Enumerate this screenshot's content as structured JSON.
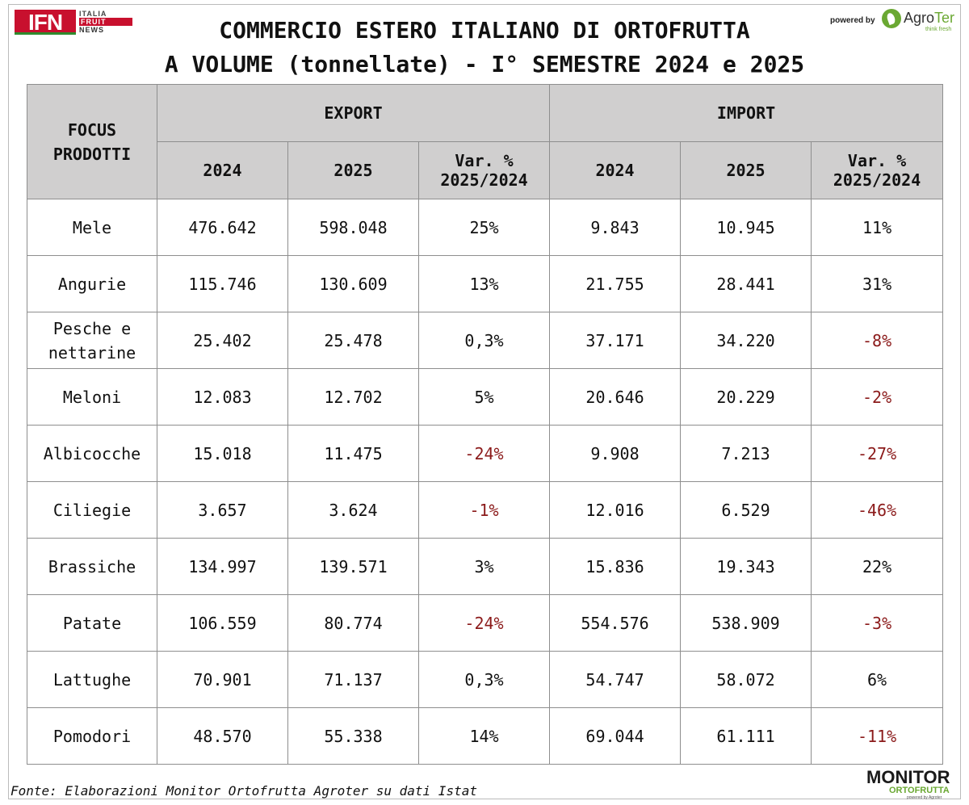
{
  "brand": {
    "ifn": {
      "main": "IFN",
      "line1": "ITALIA",
      "line2": "FRUIT",
      "line3": "NEWS"
    },
    "powered_by": "powered by",
    "agroter": {
      "name_a": "Agro",
      "name_b": "Ter",
      "tagline": "think fresh"
    },
    "monitor": {
      "line1": "MONITOR",
      "line2": "ORTOFRUTTA",
      "line3": "powered by Agroter"
    }
  },
  "title": {
    "line1": "COMMERCIO ESTERO ITALIANO DI ORTOFRUTTA",
    "line2": "A VOLUME (tonnellate) - I° SEMESTRE 2024 e 2025"
  },
  "table": {
    "header": {
      "focus_line1": "FOCUS",
      "focus_line2": "PRODOTTI",
      "export": "EXPORT",
      "import": "IMPORT",
      "y2024": "2024",
      "y2025": "2025",
      "var_line1": "Var. %",
      "var_line2": "2025/2024"
    },
    "rows": [
      {
        "product_l1": "Mele",
        "product_l2": "",
        "exp_2024": "476.642",
        "exp_2025": "598.048",
        "exp_var": "25%",
        "imp_2024": "9.843",
        "imp_2025": "10.945",
        "imp_var": "11%"
      },
      {
        "product_l1": "Angurie",
        "product_l2": "",
        "exp_2024": "115.746",
        "exp_2025": "130.609",
        "exp_var": "13%",
        "imp_2024": "21.755",
        "imp_2025": "28.441",
        "imp_var": "31%"
      },
      {
        "product_l1": "Pesche e",
        "product_l2": "nettarine",
        "exp_2024": "25.402",
        "exp_2025": "25.478",
        "exp_var": "0,3%",
        "imp_2024": "37.171",
        "imp_2025": "34.220",
        "imp_var": "-8%"
      },
      {
        "product_l1": "Meloni",
        "product_l2": "",
        "exp_2024": "12.083",
        "exp_2025": "12.702",
        "exp_var": "5%",
        "imp_2024": "20.646",
        "imp_2025": "20.229",
        "imp_var": "-2%"
      },
      {
        "product_l1": "Albicocche",
        "product_l2": "",
        "exp_2024": "15.018",
        "exp_2025": "11.475",
        "exp_var": "-24%",
        "imp_2024": "9.908",
        "imp_2025": "7.213",
        "imp_var": "-27%"
      },
      {
        "product_l1": "Ciliegie",
        "product_l2": "",
        "exp_2024": "3.657",
        "exp_2025": "3.624",
        "exp_var": "-1%",
        "imp_2024": "12.016",
        "imp_2025": "6.529",
        "imp_var": "-46%"
      },
      {
        "product_l1": "Brassiche",
        "product_l2": "",
        "exp_2024": "134.997",
        "exp_2025": "139.571",
        "exp_var": "3%",
        "imp_2024": "15.836",
        "imp_2025": "19.343",
        "imp_var": "22%"
      },
      {
        "product_l1": "Patate",
        "product_l2": "",
        "exp_2024": "106.559",
        "exp_2025": "80.774",
        "exp_var": "-24%",
        "imp_2024": "554.576",
        "imp_2025": "538.909",
        "imp_var": "-3%"
      },
      {
        "product_l1": "Lattughe",
        "product_l2": "",
        "exp_2024": "70.901",
        "exp_2025": "71.137",
        "exp_var": "0,3%",
        "imp_2024": "54.747",
        "imp_2025": "58.072",
        "imp_var": "6%"
      },
      {
        "product_l1": "Pomodori",
        "product_l2": "",
        "exp_2024": "48.570",
        "exp_2025": "55.338",
        "exp_var": "14%",
        "imp_2024": "69.044",
        "imp_2025": "61.111",
        "imp_var": "-11%"
      }
    ]
  },
  "footer": {
    "source": "Fonte: Elaborazioni Monitor Ortofrutta Agroter su dati Istat"
  },
  "colors": {
    "header_bg": "#d0cfcf",
    "negative": "#8b1a1a",
    "ifn_red": "#c8102e",
    "agroter_green": "#6aa832"
  }
}
